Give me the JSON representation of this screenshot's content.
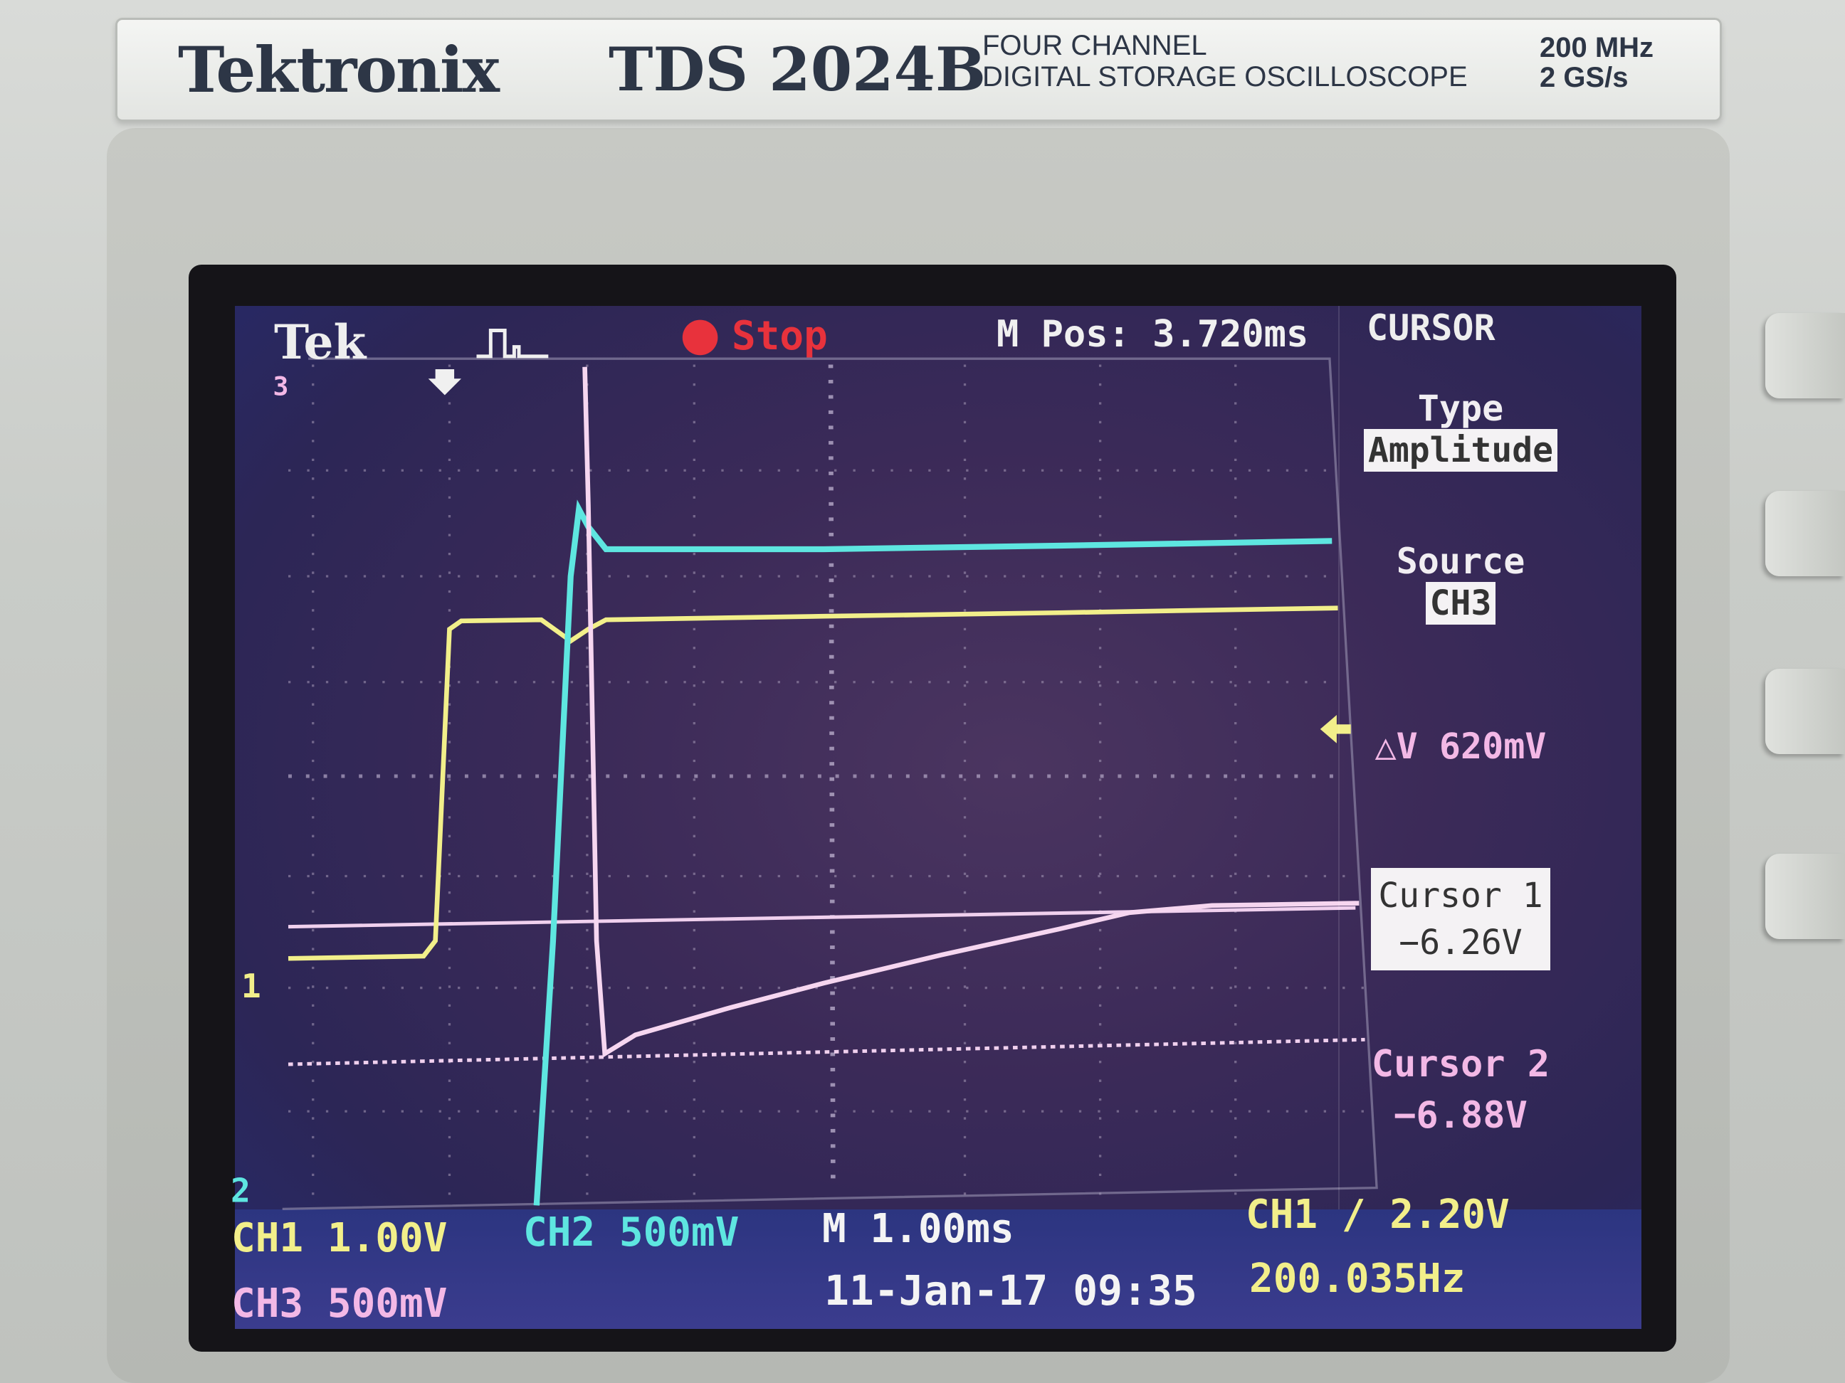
{
  "device": {
    "brand": "Tektronix",
    "model": "TDS 2024B",
    "description_line1": "FOUR  CHANNEL",
    "description_line2": "DIGITAL STORAGE OSCILLOSCOPE",
    "bandwidth": "200 MHz",
    "sample_rate": "2 GS/s"
  },
  "status_bar": {
    "logo": "Tek",
    "trigger_icon": "pulse-trigger-icon",
    "run_state": "Stop",
    "run_state_color": "#e8323c",
    "position": "M Pos: 3.720ms",
    "menu_title": "CURSOR"
  },
  "cursor_menu": {
    "type_label": "Type",
    "type_value": "Amplitude",
    "source_label": "Source",
    "source_value": "CH3",
    "delta": "△V 620mV",
    "cursor1_label": "Cursor 1",
    "cursor1_value": "−6.26V",
    "cursor2_label": "Cursor 2",
    "cursor2_value": "−6.88V"
  },
  "markers": {
    "ch1": "1",
    "ch2": "2",
    "ch3": "3"
  },
  "footer": {
    "ch1_scale": "CH1  1.00V",
    "ch2_scale": "CH2  500mV",
    "ch3_scale": "CH3  500mV",
    "timebase": "M 1.00ms",
    "trigger": "CH1 ∕ 2.20V",
    "frequency": "200.035Hz",
    "datetime": "11-Jan-17 09:35"
  },
  "colors": {
    "ch1": "#f2ef8a",
    "ch2": "#5ee6e0",
    "ch3": "#f3b8e6",
    "cursor": "#f0d0ee"
  }
}
